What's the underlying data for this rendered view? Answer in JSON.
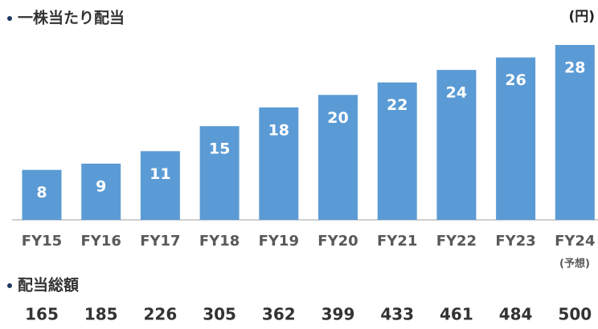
{
  "chart_data": {
    "type": "bar",
    "title": "一株当たり配当",
    "unit": "(円)",
    "categories": [
      "FY15",
      "FY16",
      "FY17",
      "FY18",
      "FY19",
      "FY20",
      "FY21",
      "FY22",
      "FY23",
      "FY24"
    ],
    "values": [
      8,
      9,
      11,
      15,
      18,
      20,
      22,
      24,
      26,
      28
    ],
    "color": "#5b9bd5",
    "ylim": [
      0,
      28
    ],
    "annotation": "(予想)",
    "totals": {
      "title": "配当総額",
      "values": [
        165,
        185,
        226,
        305,
        362,
        399,
        433,
        461,
        484,
        500
      ]
    }
  }
}
